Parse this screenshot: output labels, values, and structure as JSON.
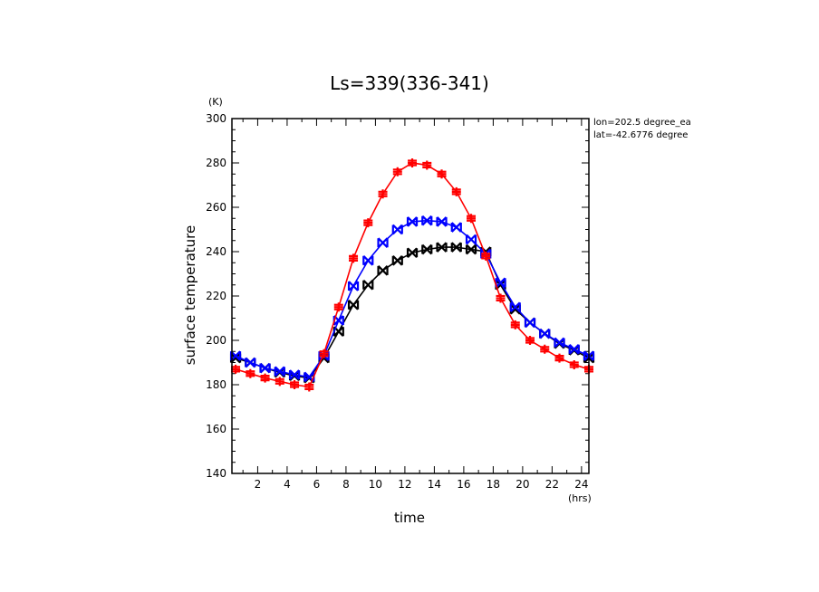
{
  "chart_data": {
    "type": "line",
    "title": "Ls=339(336-341)",
    "xlabel": "time",
    "ylabel": "surface temperature",
    "x_unit": "(hrs)",
    "y_unit": "(K)",
    "xlim": [
      0.25,
      24.5
    ],
    "ylim": [
      140,
      300
    ],
    "x_ticks": [
      2,
      4,
      6,
      8,
      10,
      12,
      14,
      16,
      18,
      20,
      22,
      24
    ],
    "y_ticks": [
      140,
      160,
      180,
      200,
      220,
      240,
      260,
      280,
      300
    ],
    "annotations": [
      "lon=202.5 degree_ea",
      "lat=-42.6776 degree"
    ],
    "x": [
      0.5,
      1.5,
      2.5,
      3.5,
      4.5,
      5.5,
      6.5,
      7.5,
      8.5,
      9.5,
      10.5,
      11.5,
      12.5,
      13.5,
      14.5,
      15.5,
      16.5,
      17.5,
      18.5,
      19.5,
      20.5,
      21.5,
      22.5,
      23.5,
      24.5
    ],
    "series": [
      {
        "color": "#ff0000",
        "marker": "plus",
        "values": [
          187,
          185,
          183,
          181.5,
          180,
          179,
          194,
          215,
          237,
          253,
          266,
          276,
          280,
          279,
          275,
          267,
          255,
          238,
          219,
          207,
          200,
          196,
          192,
          189,
          187
        ]
      },
      {
        "color": "#0000ff",
        "marker": "x",
        "values": [
          193,
          190,
          187.5,
          186,
          184.5,
          183.5,
          193,
          209,
          224.5,
          236,
          244,
          250,
          253.5,
          254,
          253.5,
          251,
          245.5,
          239,
          226,
          215,
          208,
          203,
          199,
          196,
          193
        ]
      },
      {
        "color": "#000000",
        "marker": "x",
        "values": [
          192,
          190,
          187.5,
          185.5,
          184,
          183,
          192,
          204,
          216,
          225,
          231.5,
          236,
          239.5,
          241,
          242,
          242,
          241,
          240,
          225,
          214,
          208,
          203,
          198.5,
          195.5,
          192
        ]
      }
    ]
  }
}
